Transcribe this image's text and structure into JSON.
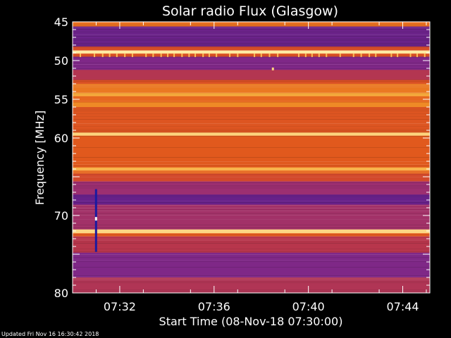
{
  "chart_data": {
    "type": "heatmap",
    "title": "Solar radio Flux (Glasgow)",
    "xlabel": "Start Time (08-Nov-18 07:30:00)",
    "ylabel": "Frequency [MHz]",
    "footer": "Updated Fri Nov 16 16:30:42 2018",
    "x_range_minutes": [
      0,
      15.15
    ],
    "x_ticks": [
      {
        "label": "07:32",
        "value": 2
      },
      {
        "label": "07:36",
        "value": 6
      },
      {
        "label": "07:40",
        "value": 10
      },
      {
        "label": "07:44",
        "value": 14
      }
    ],
    "y_range_mhz": [
      45,
      80
    ],
    "y_ticks": [
      45,
      50,
      55,
      60,
      65,
      70,
      75,
      80
    ],
    "y_tick_labels": [
      "45",
      "50",
      "55",
      "60",
      "",
      "70",
      "",
      "80"
    ],
    "intensity_bands": [
      {
        "f0": 45.0,
        "f1": 45.6,
        "level": 0.72
      },
      {
        "f0": 45.6,
        "f1": 48.2,
        "level": 0.25
      },
      {
        "f0": 48.2,
        "f1": 48.7,
        "level": 0.6
      },
      {
        "f0": 48.7,
        "f1": 49.1,
        "level": 1.0
      },
      {
        "f0": 49.1,
        "f1": 49.5,
        "level": 0.62
      },
      {
        "f0": 49.5,
        "f1": 51.2,
        "level": 0.3
      },
      {
        "f0": 51.2,
        "f1": 52.5,
        "level": 0.45
      },
      {
        "f0": 52.5,
        "f1": 53.0,
        "level": 0.62
      },
      {
        "f0": 53.0,
        "f1": 54.2,
        "level": 0.74
      },
      {
        "f0": 54.2,
        "f1": 54.6,
        "level": 0.86
      },
      {
        "f0": 54.6,
        "f1": 55.4,
        "level": 0.7
      },
      {
        "f0": 55.4,
        "f1": 56.0,
        "level": 0.78
      },
      {
        "f0": 56.0,
        "f1": 59.3,
        "level": 0.64
      },
      {
        "f0": 59.3,
        "f1": 59.7,
        "level": 0.95
      },
      {
        "f0": 59.7,
        "f1": 63.8,
        "level": 0.66
      },
      {
        "f0": 63.8,
        "f1": 64.2,
        "level": 0.88
      },
      {
        "f0": 64.2,
        "f1": 64.6,
        "level": 0.7
      },
      {
        "f0": 64.6,
        "f1": 65.6,
        "level": 0.58
      },
      {
        "f0": 65.6,
        "f1": 67.3,
        "level": 0.38
      },
      {
        "f0": 67.3,
        "f1": 68.6,
        "level": 0.24
      },
      {
        "f0": 68.6,
        "f1": 71.8,
        "level": 0.4
      },
      {
        "f0": 71.8,
        "f1": 72.3,
        "level": 0.96
      },
      {
        "f0": 72.3,
        "f1": 72.7,
        "level": 0.66
      },
      {
        "f0": 72.7,
        "f1": 74.8,
        "level": 0.46
      },
      {
        "f0": 74.8,
        "f1": 78.0,
        "level": 0.3
      },
      {
        "f0": 78.0,
        "f1": 80.0,
        "level": 0.44
      }
    ],
    "colormap": [
      "#1a005a",
      "#4a1a8c",
      "#8c2b86",
      "#c43a3a",
      "#e25a1c",
      "#f5a02a",
      "#ffe9a0"
    ]
  }
}
